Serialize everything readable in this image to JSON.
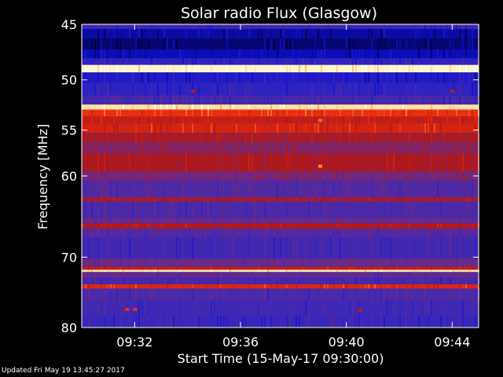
{
  "chart_data": {
    "type": "heatmap",
    "title": "Solar radio Flux (Glasgow)",
    "ylabel": "Frequency [MHz]",
    "xlabel": "Start Time (15-May-17 09:30:00)",
    "x_unit": "minutes after 09:30",
    "xlim": [
      0,
      15
    ],
    "ylim": [
      45,
      80
    ],
    "x_ticks": [
      {
        "value": 2,
        "label": "09:32"
      },
      {
        "value": 6,
        "label": "09:36"
      },
      {
        "value": 10,
        "label": "09:40"
      },
      {
        "value": 14,
        "label": "09:44"
      }
    ],
    "y_ticks": [
      {
        "value": 45,
        "label": "45"
      },
      {
        "value": 50,
        "label": "50"
      },
      {
        "value": 55,
        "label": "55"
      },
      {
        "value": 60,
        "label": "60"
      },
      {
        "value": 70,
        "label": "70"
      },
      {
        "value": 80,
        "label": "80"
      }
    ],
    "colormap": [
      "#00003c",
      "#1010d0",
      "#3a28b8",
      "#6a2a8a",
      "#b01818",
      "#e82a10",
      "#ffb040",
      "#ffffe0"
    ],
    "bands": [
      {
        "from": 45.0,
        "to": 45.4,
        "level": 0.28
      },
      {
        "from": 45.4,
        "to": 46.2,
        "level": 0.1
      },
      {
        "from": 46.2,
        "to": 47.2,
        "level": 0.05
      },
      {
        "from": 47.2,
        "to": 48.0,
        "level": 0.12
      },
      {
        "from": 48.0,
        "to": 48.6,
        "level": 0.25
      },
      {
        "from": 48.6,
        "to": 49.3,
        "level": 0.98
      },
      {
        "from": 49.3,
        "to": 50.3,
        "level": 0.2
      },
      {
        "from": 50.3,
        "to": 51.5,
        "level": 0.25
      },
      {
        "from": 51.5,
        "to": 52.4,
        "level": 0.32
      },
      {
        "from": 52.4,
        "to": 52.9,
        "level": 0.95
      },
      {
        "from": 52.9,
        "to": 53.6,
        "level": 0.72
      },
      {
        "from": 53.6,
        "to": 54.3,
        "level": 0.62
      },
      {
        "from": 54.3,
        "to": 55.3,
        "level": 0.66
      },
      {
        "from": 55.3,
        "to": 56.3,
        "level": 0.55
      },
      {
        "from": 56.3,
        "to": 57.5,
        "level": 0.48
      },
      {
        "from": 57.5,
        "to": 59.5,
        "level": 0.56
      },
      {
        "from": 59.5,
        "to": 60.5,
        "level": 0.45
      },
      {
        "from": 60.5,
        "to": 62.5,
        "level": 0.36
      },
      {
        "from": 62.5,
        "to": 63.0,
        "level": 0.55
      },
      {
        "from": 63.0,
        "to": 65.0,
        "level": 0.34
      },
      {
        "from": 65.0,
        "to": 65.7,
        "level": 0.42
      },
      {
        "from": 65.7,
        "to": 66.3,
        "level": 0.58
      },
      {
        "from": 66.3,
        "to": 67.4,
        "level": 0.36
      },
      {
        "from": 67.4,
        "to": 70.2,
        "level": 0.31
      },
      {
        "from": 70.2,
        "to": 71.3,
        "level": 0.42
      },
      {
        "from": 71.3,
        "to": 71.7,
        "level": 0.62
      },
      {
        "from": 71.7,
        "to": 72.0,
        "level": 0.96
      },
      {
        "from": 72.0,
        "to": 72.8,
        "level": 0.4
      },
      {
        "from": 72.8,
        "to": 73.7,
        "level": 0.32
      },
      {
        "from": 73.7,
        "to": 74.3,
        "level": 0.68
      },
      {
        "from": 74.3,
        "to": 76.0,
        "level": 0.34
      },
      {
        "from": 76.0,
        "to": 78.2,
        "level": 0.3
      },
      {
        "from": 78.2,
        "to": 80.0,
        "level": 0.28
      }
    ],
    "spots": [
      {
        "x": 4.2,
        "y": 51.1,
        "level": 0.6
      },
      {
        "x": 14.0,
        "y": 51.1,
        "level": 0.6
      },
      {
        "x": 9.0,
        "y": 54.0,
        "level": 0.78
      },
      {
        "x": 9.0,
        "y": 58.9,
        "level": 0.82
      },
      {
        "x": 6.6,
        "y": 60.2,
        "level": 0.55
      },
      {
        "x": 14.5,
        "y": 60.3,
        "level": 0.55
      },
      {
        "x": 1.7,
        "y": 77.3,
        "level": 0.72
      },
      {
        "x": 2.0,
        "y": 77.3,
        "level": 0.72
      },
      {
        "x": 10.5,
        "y": 77.4,
        "level": 0.6
      }
    ]
  },
  "footer": {
    "updated_text": "Updated Fri May 19 13:45:27 2017"
  }
}
